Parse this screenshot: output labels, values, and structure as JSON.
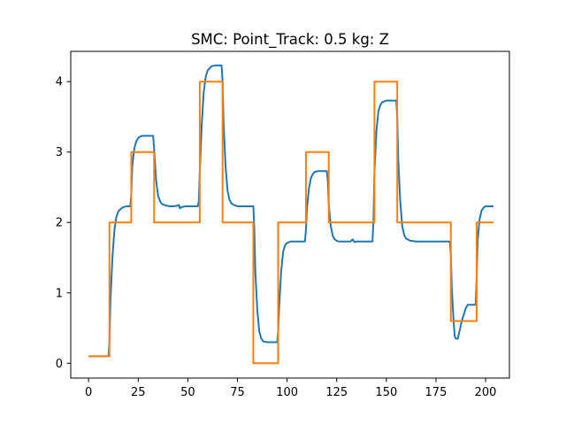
{
  "chart_data": {
    "type": "line",
    "title": "SMC: Point_Track: 0.5 kg: Z",
    "xlabel": "",
    "ylabel": "",
    "xlim": [
      -9,
      212
    ],
    "ylim": [
      -0.21,
      4.43
    ],
    "x_ticks": [
      0,
      25,
      50,
      75,
      100,
      125,
      150,
      175,
      200
    ],
    "y_ticks": [
      0,
      1,
      2,
      3,
      4
    ],
    "grid": false,
    "legend": "none",
    "series": [
      {
        "color": "#1f77b4",
        "x": [
          0,
          10,
          10.5,
          11,
          12,
          13,
          14,
          15,
          17,
          19,
          21,
          21.5,
          22,
          23,
          24,
          25,
          26,
          27,
          29,
          31,
          32.5,
          33,
          34,
          35,
          36,
          37,
          38,
          39,
          41,
          43,
          45,
          45.5,
          46,
          47,
          49,
          51,
          53,
          55,
          55.5,
          56,
          57,
          58,
          59,
          60,
          62,
          64,
          66,
          67,
          67.5,
          68,
          69,
          70,
          71,
          72,
          73,
          75,
          79,
          83,
          83.5,
          84,
          85,
          86,
          87,
          88,
          90,
          92,
          94,
          95,
          95.5,
          96,
          97,
          98,
          99,
          100,
          102,
          105,
          109,
          109.5,
          110,
          111,
          112,
          113,
          114,
          116,
          118,
          120,
          120.5,
          121,
          122,
          123,
          124,
          125,
          126,
          128,
          130,
          132,
          133,
          134,
          135,
          137,
          139,
          141,
          143,
          143.5,
          144,
          145,
          146,
          147,
          148,
          150,
          152,
          154,
          155,
          155.5,
          156,
          157,
          158,
          159,
          160,
          162,
          165,
          170,
          175,
          180,
          182,
          182.5,
          183,
          184,
          184.5,
          185,
          186,
          188,
          190,
          191,
          192,
          193,
          194,
          195,
          195.5,
          196,
          197,
          198,
          199,
          200,
          202,
          204
        ],
        "y": [
          0.1,
          0.1,
          0.3,
          0.9,
          1.5,
          1.9,
          2.08,
          2.16,
          2.21,
          2.23,
          2.23,
          2.4,
          2.8,
          3.05,
          3.15,
          3.2,
          3.22,
          3.23,
          3.23,
          3.23,
          3.23,
          3.05,
          2.6,
          2.38,
          2.3,
          2.26,
          2.25,
          2.24,
          2.23,
          2.23,
          2.24,
          2.25,
          2.2,
          2.22,
          2.23,
          2.23,
          2.23,
          2.23,
          2.3,
          2.7,
          3.4,
          3.85,
          4.07,
          4.16,
          4.22,
          4.23,
          4.23,
          4.23,
          4.0,
          3.4,
          2.8,
          2.45,
          2.32,
          2.27,
          2.25,
          2.23,
          2.23,
          2.23,
          1.9,
          1.3,
          0.75,
          0.45,
          0.35,
          0.31,
          0.3,
          0.3,
          0.3,
          0.3,
          0.45,
          0.8,
          1.3,
          1.58,
          1.68,
          1.71,
          1.73,
          1.73,
          1.73,
          1.9,
          2.2,
          2.48,
          2.63,
          2.69,
          2.72,
          2.73,
          2.73,
          2.73,
          2.6,
          2.25,
          1.95,
          1.81,
          1.76,
          1.74,
          1.73,
          1.73,
          1.73,
          1.73,
          1.76,
          1.72,
          1.73,
          1.73,
          1.73,
          1.73,
          1.73,
          2.0,
          2.7,
          3.3,
          3.58,
          3.67,
          3.71,
          3.73,
          3.73,
          3.73,
          3.73,
          3.5,
          2.9,
          2.3,
          1.95,
          1.82,
          1.77,
          1.74,
          1.73,
          1.73,
          1.73,
          1.73,
          1.73,
          1.55,
          1.05,
          0.55,
          0.38,
          0.35,
          0.35,
          0.6,
          0.78,
          0.83,
          0.83,
          0.83,
          0.83,
          0.83,
          1.2,
          1.75,
          2.05,
          2.17,
          2.21,
          2.23,
          2.23,
          2.23
        ]
      },
      {
        "color": "#ff7f0e",
        "x": [
          0,
          10.5,
          10.5,
          21.5,
          21.5,
          33,
          33,
          56,
          56,
          67.5,
          67.5,
          83,
          83,
          95.5,
          95.5,
          109.5,
          109.5,
          121,
          121,
          144,
          144,
          155.5,
          155.5,
          182.5,
          182.5,
          195.5,
          195.5,
          204
        ],
        "y": [
          0.1,
          0.1,
          2,
          2,
          3,
          3,
          2,
          2,
          4,
          4,
          2,
          2,
          0,
          0,
          2,
          2,
          3,
          3,
          2,
          2,
          4,
          4,
          2,
          2,
          0.6,
          0.6,
          2,
          2
        ]
      }
    ]
  }
}
